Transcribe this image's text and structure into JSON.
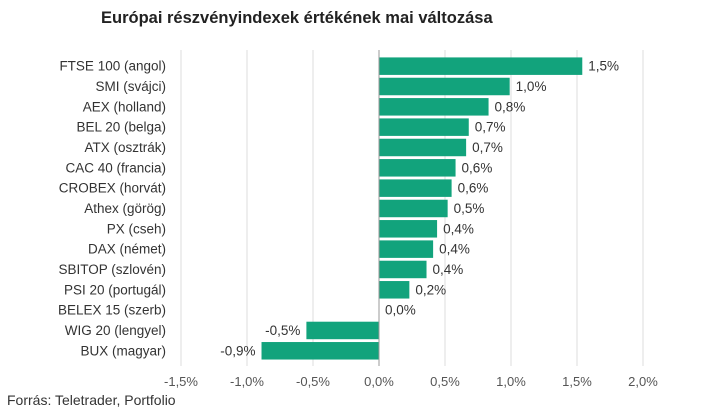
{
  "chart_data": {
    "type": "bar",
    "orientation": "horizontal",
    "title": "Európai részvényindexek értékének mai változása",
    "source": "Forrás: Teletrader, Portfolio",
    "categories": [
      "FTSE 100 (angol)",
      "SMI (svájci)",
      "AEX (holland)",
      "BEL 20 (belga)",
      "ATX (osztrák)",
      "CAC 40 (francia)",
      "CROBEX (horvát)",
      "Athex (görög)",
      "PX (cseh)",
      "DAX (német)",
      "SBITOP (szlovén)",
      "PSI 20 (portugál)",
      "BELEX 15 (szerb)",
      "WIG 20 (lengyel)",
      "BUX (magyar)"
    ],
    "values": [
      1.54,
      0.99,
      0.83,
      0.68,
      0.66,
      0.58,
      0.55,
      0.52,
      0.44,
      0.41,
      0.36,
      0.23,
      0.0,
      -0.55,
      -0.89
    ],
    "value_labels": [
      "1,5%",
      "1,0%",
      "0,8%",
      "0,7%",
      "0,7%",
      "0,6%",
      "0,6%",
      "0,5%",
      "0,4%",
      "0,4%",
      "0,4%",
      "0,2%",
      "0,0%",
      "-0,5%",
      "-0,9%"
    ],
    "xlim": [
      -1.5,
      2.0
    ],
    "xticks": [
      -1.5,
      -1.0,
      -0.5,
      0.0,
      0.5,
      1.0,
      1.5,
      2.0
    ],
    "xtick_labels": [
      "-1,5%",
      "-1,0%",
      "-0,5%",
      "0,0%",
      "0,5%",
      "1,0%",
      "1,5%",
      "2,0%"
    ],
    "grid": "vertical",
    "colors": {
      "bar": "#12a37c",
      "grid": "#dddddd",
      "text": "#333333",
      "axis_label": "#555555"
    }
  }
}
